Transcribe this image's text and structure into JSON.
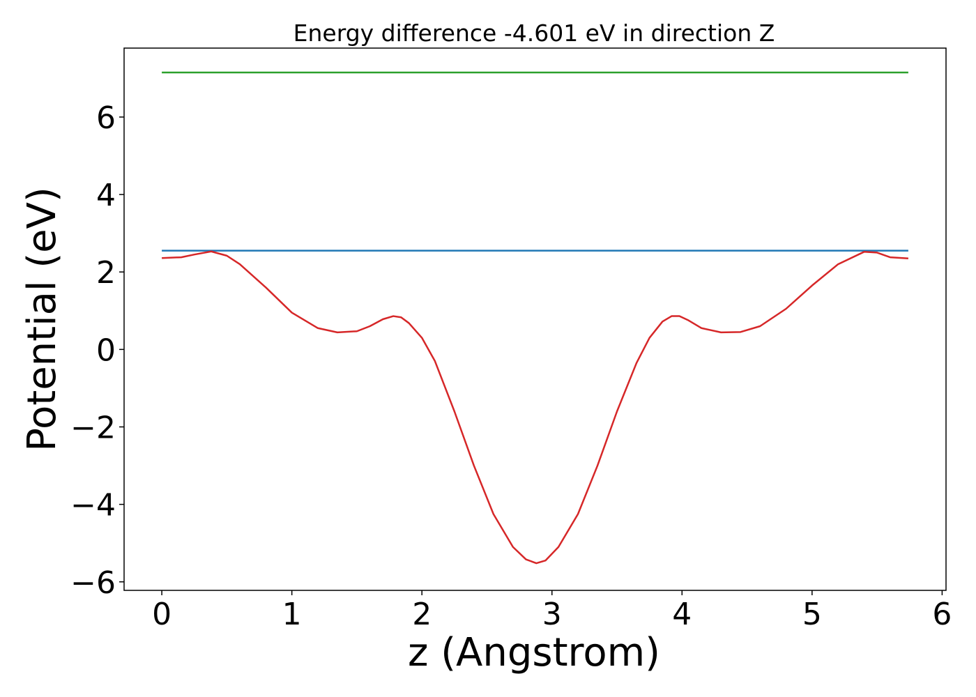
{
  "chart_data": {
    "type": "line",
    "title": "Energy difference -4.601 eV in direction Z",
    "xlabel": "z (Angstrom)",
    "ylabel": "Potential (eV)",
    "xlim": [
      -0.29,
      6.03
    ],
    "ylim": [
      -6.22,
      7.78
    ],
    "xticks": [
      0,
      1,
      2,
      3,
      4,
      5,
      6
    ],
    "xtick_labels": [
      "0",
      "1",
      "2",
      "3",
      "4",
      "5",
      "6"
    ],
    "yticks": [
      -6,
      -4,
      -2,
      0,
      2,
      4,
      6
    ],
    "ytick_labels": [
      "−6",
      "−4",
      "−2",
      "0",
      "2",
      "4",
      "6"
    ],
    "grid": false,
    "series": [
      {
        "color": "#2ca02c",
        "x": [
          0,
          5.74
        ],
        "y": [
          7.15,
          7.15
        ]
      },
      {
        "color": "#1f77b4",
        "x": [
          0,
          5.74
        ],
        "y": [
          2.55,
          2.55
        ]
      },
      {
        "color": "#d62728",
        "x": [
          0,
          0.15,
          0.25,
          0.38,
          0.5,
          0.6,
          0.8,
          1.0,
          1.2,
          1.35,
          1.5,
          1.6,
          1.7,
          1.78,
          1.84,
          1.9,
          2.0,
          2.1,
          2.25,
          2.4,
          2.55,
          2.7,
          2.8,
          2.88,
          2.95,
          3.05,
          3.2,
          3.35,
          3.5,
          3.65,
          3.75,
          3.85,
          3.92,
          3.98,
          4.05,
          4.15,
          4.3,
          4.45,
          4.6,
          4.8,
          5.0,
          5.2,
          5.4,
          5.5,
          5.6,
          5.74
        ],
        "y": [
          2.36,
          2.38,
          2.45,
          2.53,
          2.42,
          2.2,
          1.6,
          0.95,
          0.55,
          0.44,
          0.47,
          0.6,
          0.78,
          0.86,
          0.83,
          0.68,
          0.3,
          -0.3,
          -1.6,
          -3.0,
          -4.25,
          -5.1,
          -5.42,
          -5.52,
          -5.45,
          -5.1,
          -4.25,
          -3.0,
          -1.6,
          -0.35,
          0.3,
          0.72,
          0.86,
          0.86,
          0.75,
          0.55,
          0.44,
          0.45,
          0.6,
          1.05,
          1.65,
          2.2,
          2.52,
          2.5,
          2.38,
          2.35
        ]
      }
    ]
  }
}
